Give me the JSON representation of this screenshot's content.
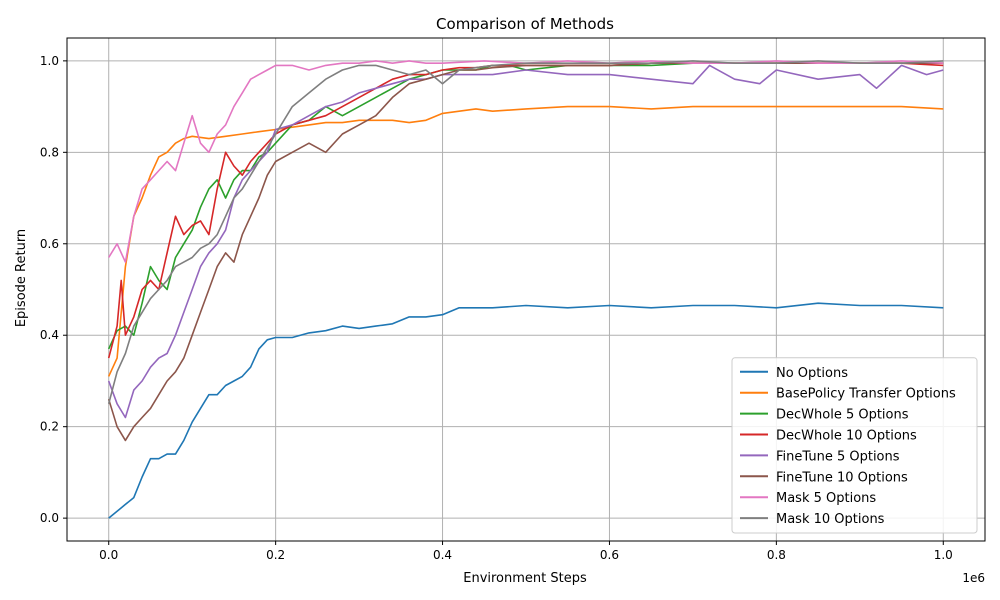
{
  "chart_data": {
    "type": "line",
    "title": "Comparison of Methods",
    "xlabel": "Environment Steps",
    "ylabel": "Episode Return",
    "x_offset_label": "1e6",
    "xlim": [
      -50000,
      1050000
    ],
    "ylim": [
      -0.05,
      1.05
    ],
    "x_ticks": [
      0,
      200000,
      400000,
      600000,
      800000,
      1000000
    ],
    "x_tick_labels": [
      "0.0",
      "0.2",
      "0.4",
      "0.6",
      "0.8",
      "1.0"
    ],
    "y_ticks": [
      0.0,
      0.2,
      0.4,
      0.6,
      0.8,
      1.0
    ],
    "y_tick_labels": [
      "0.0",
      "0.2",
      "0.4",
      "0.6",
      "0.8",
      "1.0"
    ],
    "grid": true,
    "legend_position": "bottom-right",
    "series": [
      {
        "name": "No Options",
        "color": "#1f77b4",
        "x": [
          0,
          10000,
          20000,
          30000,
          40000,
          50000,
          60000,
          70000,
          80000,
          90000,
          100000,
          110000,
          120000,
          130000,
          140000,
          150000,
          160000,
          170000,
          180000,
          190000,
          200000,
          220000,
          240000,
          260000,
          280000,
          300000,
          320000,
          340000,
          360000,
          380000,
          400000,
          420000,
          440000,
          460000,
          500000,
          550000,
          600000,
          650000,
          700000,
          750000,
          800000,
          850000,
          900000,
          950000,
          1000000
        ],
        "y": [
          0.0,
          0.015,
          0.03,
          0.045,
          0.09,
          0.13,
          0.13,
          0.14,
          0.14,
          0.17,
          0.21,
          0.24,
          0.27,
          0.27,
          0.29,
          0.3,
          0.31,
          0.33,
          0.37,
          0.39,
          0.395,
          0.395,
          0.405,
          0.41,
          0.42,
          0.415,
          0.42,
          0.425,
          0.44,
          0.44,
          0.445,
          0.46,
          0.46,
          0.46,
          0.465,
          0.46,
          0.465,
          0.46,
          0.465,
          0.465,
          0.46,
          0.47,
          0.465,
          0.465,
          0.46
        ]
      },
      {
        "name": "BasePolicy Transfer Options",
        "color": "#ff7f0e",
        "x": [
          0,
          10000,
          20000,
          30000,
          40000,
          50000,
          60000,
          70000,
          80000,
          90000,
          100000,
          120000,
          140000,
          160000,
          180000,
          200000,
          220000,
          240000,
          260000,
          280000,
          300000,
          320000,
          340000,
          360000,
          380000,
          400000,
          420000,
          440000,
          460000,
          500000,
          550000,
          600000,
          650000,
          700000,
          750000,
          800000,
          850000,
          900000,
          950000,
          1000000
        ],
        "y": [
          0.31,
          0.35,
          0.55,
          0.66,
          0.7,
          0.75,
          0.79,
          0.8,
          0.82,
          0.83,
          0.835,
          0.83,
          0.835,
          0.84,
          0.845,
          0.85,
          0.855,
          0.86,
          0.865,
          0.865,
          0.87,
          0.87,
          0.87,
          0.865,
          0.87,
          0.885,
          0.89,
          0.895,
          0.89,
          0.895,
          0.9,
          0.9,
          0.895,
          0.9,
          0.9,
          0.9,
          0.9,
          0.9,
          0.9,
          0.895
        ]
      },
      {
        "name": "DecWhole 5 Options",
        "color": "#2ca02c",
        "x": [
          0,
          10000,
          20000,
          30000,
          40000,
          50000,
          60000,
          70000,
          80000,
          90000,
          100000,
          110000,
          120000,
          130000,
          140000,
          150000,
          160000,
          170000,
          180000,
          190000,
          200000,
          220000,
          240000,
          260000,
          280000,
          300000,
          320000,
          340000,
          360000,
          380000,
          400000,
          420000,
          440000,
          460000,
          480000,
          500000,
          550000,
          600000,
          650000,
          700000,
          750000,
          800000,
          850000,
          900000,
          950000,
          1000000
        ],
        "y": [
          0.37,
          0.41,
          0.42,
          0.4,
          0.47,
          0.55,
          0.52,
          0.5,
          0.57,
          0.6,
          0.63,
          0.68,
          0.72,
          0.74,
          0.7,
          0.74,
          0.76,
          0.76,
          0.79,
          0.8,
          0.82,
          0.86,
          0.87,
          0.9,
          0.88,
          0.9,
          0.92,
          0.94,
          0.96,
          0.97,
          0.98,
          0.98,
          0.98,
          0.99,
          0.99,
          0.98,
          0.99,
          0.99,
          0.99,
          0.995,
          0.995,
          0.995,
          0.995,
          0.995,
          0.995,
          0.995
        ]
      },
      {
        "name": "DecWhole 10 Options",
        "color": "#d62728",
        "x": [
          0,
          10000,
          15000,
          20000,
          30000,
          40000,
          50000,
          60000,
          70000,
          80000,
          90000,
          100000,
          110000,
          120000,
          130000,
          140000,
          150000,
          160000,
          170000,
          180000,
          190000,
          200000,
          220000,
          240000,
          260000,
          280000,
          300000,
          320000,
          340000,
          360000,
          380000,
          400000,
          420000,
          440000,
          460000,
          500000,
          550000,
          600000,
          650000,
          700000,
          750000,
          800000,
          850000,
          900000,
          950000,
          1000000
        ],
        "y": [
          0.35,
          0.42,
          0.52,
          0.4,
          0.44,
          0.5,
          0.52,
          0.5,
          0.58,
          0.66,
          0.62,
          0.64,
          0.65,
          0.62,
          0.72,
          0.8,
          0.77,
          0.75,
          0.78,
          0.8,
          0.82,
          0.84,
          0.86,
          0.87,
          0.88,
          0.9,
          0.92,
          0.94,
          0.96,
          0.97,
          0.97,
          0.98,
          0.985,
          0.985,
          0.99,
          0.99,
          0.99,
          0.99,
          0.995,
          0.995,
          0.995,
          0.995,
          0.995,
          0.995,
          0.995,
          0.99
        ]
      },
      {
        "name": "FineTune 5 Options",
        "color": "#9467bd",
        "x": [
          0,
          10000,
          20000,
          30000,
          40000,
          50000,
          60000,
          70000,
          80000,
          90000,
          100000,
          110000,
          120000,
          130000,
          140000,
          150000,
          160000,
          170000,
          180000,
          190000,
          200000,
          220000,
          240000,
          260000,
          280000,
          300000,
          320000,
          340000,
          360000,
          380000,
          400000,
          420000,
          440000,
          460000,
          500000,
          550000,
          600000,
          650000,
          700000,
          720000,
          750000,
          780000,
          800000,
          850000,
          900000,
          920000,
          950000,
          980000,
          1000000
        ],
        "y": [
          0.3,
          0.25,
          0.22,
          0.28,
          0.3,
          0.33,
          0.35,
          0.36,
          0.4,
          0.45,
          0.5,
          0.55,
          0.58,
          0.6,
          0.63,
          0.7,
          0.74,
          0.76,
          0.78,
          0.8,
          0.85,
          0.86,
          0.88,
          0.9,
          0.91,
          0.93,
          0.94,
          0.95,
          0.96,
          0.96,
          0.97,
          0.97,
          0.97,
          0.97,
          0.98,
          0.97,
          0.97,
          0.96,
          0.95,
          0.99,
          0.96,
          0.95,
          0.98,
          0.96,
          0.97,
          0.94,
          0.99,
          0.97,
          0.98
        ]
      },
      {
        "name": "FineTune 10 Options",
        "color": "#8c564b",
        "x": [
          0,
          10000,
          20000,
          30000,
          40000,
          50000,
          60000,
          70000,
          80000,
          90000,
          100000,
          110000,
          120000,
          130000,
          140000,
          150000,
          160000,
          170000,
          180000,
          190000,
          200000,
          220000,
          240000,
          260000,
          280000,
          300000,
          320000,
          340000,
          360000,
          380000,
          400000,
          420000,
          440000,
          460000,
          500000,
          550000,
          600000,
          650000,
          700000,
          750000,
          800000,
          850000,
          900000,
          950000,
          1000000
        ],
        "y": [
          0.26,
          0.2,
          0.17,
          0.2,
          0.22,
          0.24,
          0.27,
          0.3,
          0.32,
          0.35,
          0.4,
          0.45,
          0.5,
          0.55,
          0.58,
          0.56,
          0.62,
          0.66,
          0.7,
          0.75,
          0.78,
          0.8,
          0.82,
          0.8,
          0.84,
          0.86,
          0.88,
          0.92,
          0.95,
          0.96,
          0.97,
          0.98,
          0.98,
          0.985,
          0.99,
          0.99,
          0.99,
          0.995,
          0.995,
          0.995,
          0.995,
          0.995,
          0.995,
          0.995,
          0.995
        ]
      },
      {
        "name": "Mask 5 Options",
        "color": "#e377c2",
        "x": [
          0,
          10000,
          20000,
          30000,
          40000,
          50000,
          60000,
          70000,
          80000,
          90000,
          100000,
          110000,
          120000,
          130000,
          140000,
          150000,
          160000,
          170000,
          180000,
          190000,
          200000,
          220000,
          240000,
          260000,
          280000,
          300000,
          320000,
          340000,
          360000,
          380000,
          400000,
          450000,
          500000,
          550000,
          600000,
          650000,
          700000,
          750000,
          800000,
          850000,
          900000,
          950000,
          1000000
        ],
        "y": [
          0.57,
          0.6,
          0.56,
          0.66,
          0.72,
          0.74,
          0.76,
          0.78,
          0.76,
          0.82,
          0.88,
          0.82,
          0.8,
          0.84,
          0.86,
          0.9,
          0.93,
          0.96,
          0.97,
          0.98,
          0.99,
          0.99,
          0.98,
          0.99,
          0.995,
          0.995,
          1.0,
          0.995,
          1.0,
          0.995,
          0.995,
          1.0,
          0.995,
          1.0,
          0.995,
          1.0,
          0.995,
          0.995,
          1.0,
          0.995,
          0.995,
          1.0,
          0.995
        ]
      },
      {
        "name": "Mask 10 Options",
        "color": "#7f7f7f",
        "x": [
          0,
          10000,
          20000,
          30000,
          40000,
          50000,
          60000,
          70000,
          80000,
          90000,
          100000,
          110000,
          120000,
          130000,
          140000,
          150000,
          160000,
          170000,
          180000,
          190000,
          200000,
          220000,
          240000,
          260000,
          280000,
          300000,
          320000,
          340000,
          360000,
          380000,
          400000,
          420000,
          440000,
          460000,
          500000,
          550000,
          600000,
          650000,
          700000,
          750000,
          800000,
          850000,
          900000,
          950000,
          1000000
        ],
        "y": [
          0.25,
          0.32,
          0.36,
          0.42,
          0.45,
          0.48,
          0.5,
          0.52,
          0.55,
          0.56,
          0.57,
          0.59,
          0.6,
          0.62,
          0.66,
          0.7,
          0.72,
          0.75,
          0.78,
          0.81,
          0.84,
          0.9,
          0.93,
          0.96,
          0.98,
          0.99,
          0.99,
          0.98,
          0.97,
          0.98,
          0.95,
          0.98,
          0.985,
          0.99,
          0.995,
          0.995,
          0.995,
          0.995,
          1.0,
          0.995,
          0.995,
          1.0,
          0.995,
          0.995,
          1.0
        ]
      }
    ]
  }
}
